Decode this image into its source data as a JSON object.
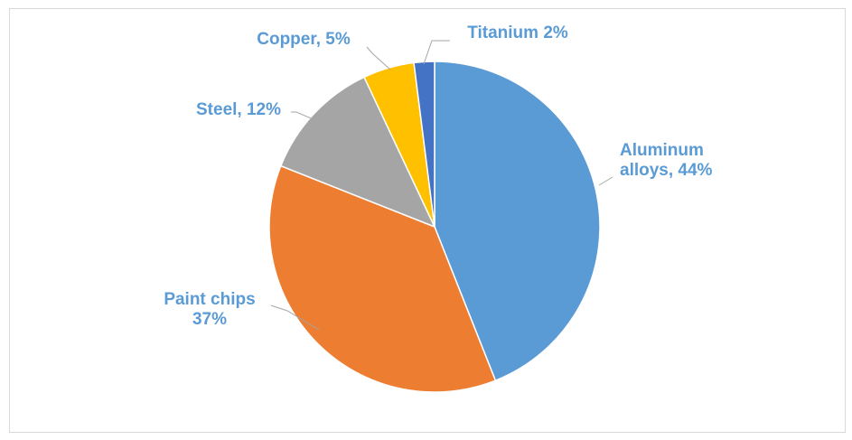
{
  "chart_data": {
    "type": "pie",
    "title": "",
    "slices": [
      {
        "name": "Aluminum alloys",
        "value": 44,
        "color": "#5b9bd5",
        "label_lines": [
          "Aluminum",
          "alloys, 44%"
        ]
      },
      {
        "name": "Paint chips",
        "value": 37,
        "color": "#ed7d31",
        "label_lines": [
          "Paint chips",
          "37%"
        ]
      },
      {
        "name": "Steel",
        "value": 12,
        "color": "#a5a5a5",
        "label_lines": [
          "Steel, 12%"
        ]
      },
      {
        "name": "Copper",
        "value": 5,
        "color": "#ffc000",
        "label_lines": [
          "Copper, 5%"
        ]
      },
      {
        "name": "Titanium",
        "value": 2,
        "color": "#4472c4",
        "label_lines": [
          "Titanium 2%"
        ]
      }
    ],
    "label_color": "#5b9bd5",
    "start_angle": "12 o'clock",
    "direction": "clockwise",
    "legend": "none",
    "data_labels": "outside with leader lines"
  }
}
